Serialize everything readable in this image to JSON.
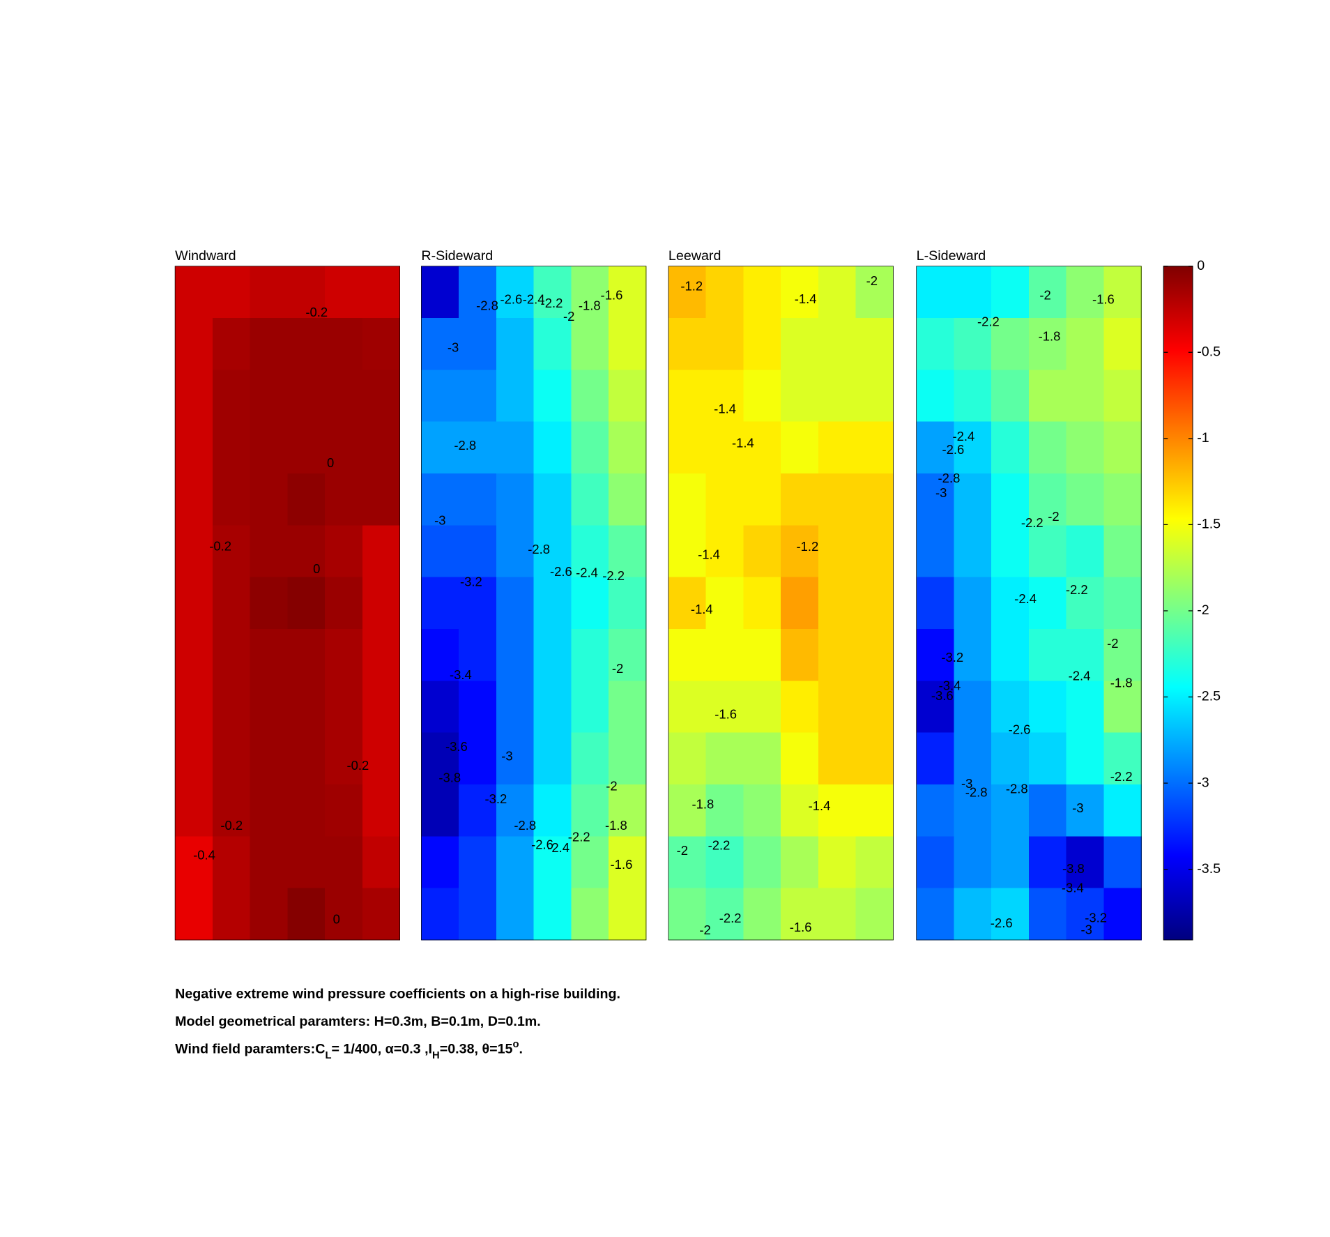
{
  "chart_data": [
    {
      "type": "contour",
      "title": "Windward",
      "z": [
        [
          -0.3,
          -0.3,
          -0.25,
          -0.25,
          -0.3,
          -0.3
        ],
        [
          -0.3,
          -0.15,
          -0.1,
          -0.1,
          -0.1,
          -0.12
        ],
        [
          -0.3,
          -0.12,
          -0.1,
          -0.1,
          -0.1,
          -0.1
        ],
        [
          -0.3,
          -0.12,
          -0.1,
          -0.1,
          -0.1,
          -0.1
        ],
        [
          -0.3,
          -0.12,
          -0.1,
          -0.05,
          -0.1,
          -0.1
        ],
        [
          -0.3,
          -0.15,
          -0.1,
          -0.1,
          -0.15,
          -0.3
        ],
        [
          -0.3,
          -0.15,
          -0.05,
          -0.02,
          -0.1,
          -0.3
        ],
        [
          -0.3,
          -0.15,
          -0.1,
          -0.1,
          -0.15,
          -0.3
        ],
        [
          -0.3,
          -0.15,
          -0.1,
          -0.1,
          -0.15,
          -0.3
        ],
        [
          -0.3,
          -0.15,
          -0.1,
          -0.1,
          -0.15,
          -0.3
        ],
        [
          -0.3,
          -0.15,
          -0.1,
          -0.1,
          -0.12,
          -0.3
        ],
        [
          -0.4,
          -0.2,
          -0.1,
          -0.1,
          -0.1,
          -0.25
        ],
        [
          -0.4,
          -0.2,
          -0.1,
          -0.02,
          -0.1,
          -0.15
        ]
      ],
      "contour_labels": [
        {
          "x": 3.78,
          "y": 0.91,
          "value": -0.2
        },
        {
          "x": 4.15,
          "y": 3.81,
          "value": 0
        },
        {
          "x": 1.21,
          "y": 5.42,
          "value": -0.2
        },
        {
          "x": 3.78,
          "y": 5.86,
          "value": 0
        },
        {
          "x": 4.88,
          "y": 9.65,
          "value": -0.2
        },
        {
          "x": 1.51,
          "y": 10.81,
          "value": -0.2
        },
        {
          "x": 0.78,
          "y": 11.38,
          "value": -0.4
        },
        {
          "x": 4.31,
          "y": 12.62,
          "value": 0
        }
      ]
    },
    {
      "type": "contour",
      "title": "R-Sideward",
      "z": [
        [
          -3.6,
          -3.0,
          -2.6,
          -2.2,
          -1.9,
          -1.6
        ],
        [
          -3.0,
          -3.0,
          -2.7,
          -2.3,
          -1.9,
          -1.6
        ],
        [
          -2.9,
          -2.9,
          -2.7,
          -2.4,
          -2.0,
          -1.7
        ],
        [
          -2.8,
          -2.8,
          -2.8,
          -2.5,
          -2.1,
          -1.8
        ],
        [
          -3.0,
          -3.0,
          -2.9,
          -2.6,
          -2.2,
          -1.9
        ],
        [
          -3.1,
          -3.1,
          -2.9,
          -2.6,
          -2.3,
          -2.1
        ],
        [
          -3.3,
          -3.3,
          -3.0,
          -2.6,
          -2.4,
          -2.2
        ],
        [
          -3.4,
          -3.3,
          -3.0,
          -2.6,
          -2.3,
          -2.1
        ],
        [
          -3.6,
          -3.4,
          -3.0,
          -2.6,
          -2.3,
          -2.0
        ],
        [
          -3.7,
          -3.4,
          -3.0,
          -2.6,
          -2.2,
          -2.0
        ],
        [
          -3.7,
          -3.3,
          -2.9,
          -2.5,
          -2.1,
          -1.8
        ],
        [
          -3.4,
          -3.2,
          -2.8,
          -2.4,
          -2.0,
          -1.6
        ],
        [
          -3.3,
          -3.2,
          -2.8,
          -2.4,
          -1.9,
          -1.6
        ]
      ],
      "contour_labels": [
        {
          "x": 1.76,
          "y": 0.78,
          "value": -2.8
        },
        {
          "x": 2.4,
          "y": 0.66,
          "value": -2.6
        },
        {
          "x": 3.0,
          "y": 0.66,
          "value": -2.4
        },
        {
          "x": 3.48,
          "y": 0.73,
          "value": -2.2
        },
        {
          "x": 3.94,
          "y": 0.99,
          "value": -2
        },
        {
          "x": 4.49,
          "y": 0.78,
          "value": -1.8
        },
        {
          "x": 5.08,
          "y": 0.58,
          "value": -1.6
        },
        {
          "x": 0.85,
          "y": 1.59,
          "value": -3
        },
        {
          "x": 1.17,
          "y": 3.48,
          "value": -2.8
        },
        {
          "x": 0.5,
          "y": 4.92,
          "value": -3
        },
        {
          "x": 3.14,
          "y": 5.48,
          "value": -2.8
        },
        {
          "x": 1.33,
          "y": 6.11,
          "value": -3.2
        },
        {
          "x": 3.73,
          "y": 5.91,
          "value": -2.6
        },
        {
          "x": 4.42,
          "y": 5.93,
          "value": -2.4
        },
        {
          "x": 5.13,
          "y": 5.99,
          "value": -2.2
        },
        {
          "x": 1.05,
          "y": 7.9,
          "value": -3.4
        },
        {
          "x": 5.24,
          "y": 7.78,
          "value": -2
        },
        {
          "x": 0.94,
          "y": 9.29,
          "value": -3.6
        },
        {
          "x": 2.29,
          "y": 9.47,
          "value": -3
        },
        {
          "x": 0.76,
          "y": 9.89,
          "value": -3.8
        },
        {
          "x": 5.08,
          "y": 10.05,
          "value": -2
        },
        {
          "x": 1.99,
          "y": 10.3,
          "value": -3.2
        },
        {
          "x": 2.77,
          "y": 10.81,
          "value": -2.8
        },
        {
          "x": 5.2,
          "y": 10.81,
          "value": -1.8
        },
        {
          "x": 3.23,
          "y": 11.18,
          "value": -2.6
        },
        {
          "x": 3.66,
          "y": 11.24,
          "value": -2.4
        },
        {
          "x": 4.21,
          "y": 11.03,
          "value": -2.2
        },
        {
          "x": 5.34,
          "y": 11.56,
          "value": -1.6
        }
      ]
    },
    {
      "type": "contour",
      "title": "Leeward",
      "z": [
        [
          -1.2,
          -1.3,
          -1.4,
          -1.5,
          -1.6,
          -1.8
        ],
        [
          -1.3,
          -1.3,
          -1.4,
          -1.6,
          -1.6,
          -1.6
        ],
        [
          -1.4,
          -1.4,
          -1.5,
          -1.6,
          -1.6,
          -1.6
        ],
        [
          -1.4,
          -1.4,
          -1.4,
          -1.5,
          -1.4,
          -1.4
        ],
        [
          -1.5,
          -1.4,
          -1.4,
          -1.3,
          -1.3,
          -1.3
        ],
        [
          -1.5,
          -1.4,
          -1.3,
          -1.2,
          -1.3,
          -1.3
        ],
        [
          -1.3,
          -1.5,
          -1.4,
          -1.1,
          -1.3,
          -1.3
        ],
        [
          -1.5,
          -1.5,
          -1.5,
          -1.2,
          -1.3,
          -1.3
        ],
        [
          -1.6,
          -1.6,
          -1.6,
          -1.4,
          -1.3,
          -1.3
        ],
        [
          -1.7,
          -1.8,
          -1.8,
          -1.5,
          -1.3,
          -1.3
        ],
        [
          -1.8,
          -2.0,
          -1.9,
          -1.6,
          -1.5,
          -1.5
        ],
        [
          -2.1,
          -2.2,
          -2.0,
          -1.8,
          -1.6,
          -1.7
        ],
        [
          -2.0,
          -2.1,
          -1.9,
          -1.7,
          -1.7,
          -1.8
        ]
      ],
      "contour_labels": [
        {
          "x": 0.62,
          "y": 0.4,
          "value": -1.2
        },
        {
          "x": 5.43,
          "y": 0.3,
          "value": -2
        },
        {
          "x": 3.66,
          "y": 0.65,
          "value": -1.4
        },
        {
          "x": 1.51,
          "y": 2.77,
          "value": -1.4
        },
        {
          "x": 1.99,
          "y": 3.43,
          "value": -1.4
        },
        {
          "x": 3.71,
          "y": 5.43,
          "value": -1.2
        },
        {
          "x": 1.08,
          "y": 5.58,
          "value": -1.4
        },
        {
          "x": 0.89,
          "y": 6.64,
          "value": -1.4
        },
        {
          "x": 1.53,
          "y": 8.66,
          "value": -1.6
        },
        {
          "x": 0.92,
          "y": 10.4,
          "value": -1.8
        },
        {
          "x": 4.03,
          "y": 10.43,
          "value": -1.4
        },
        {
          "x": 0.37,
          "y": 11.29,
          "value": -2
        },
        {
          "x": 1.35,
          "y": 11.19,
          "value": -2.2
        },
        {
          "x": 1.65,
          "y": 12.6,
          "value": -2.2
        },
        {
          "x": 0.98,
          "y": 12.83,
          "value": -2
        },
        {
          "x": 3.53,
          "y": 12.77,
          "value": -1.6
        }
      ]
    },
    {
      "type": "contour",
      "title": "L-Sideward",
      "z": [
        [
          -2.5,
          -2.5,
          -2.4,
          -2.1,
          -1.9,
          -1.7
        ],
        [
          -2.3,
          -2.2,
          -2.0,
          -1.9,
          -1.8,
          -1.6
        ],
        [
          -2.4,
          -2.3,
          -2.1,
          -1.8,
          -1.8,
          -1.7
        ],
        [
          -2.8,
          -2.6,
          -2.3,
          -2.0,
          -1.9,
          -1.8
        ],
        [
          -3.0,
          -2.7,
          -2.4,
          -2.1,
          -2.0,
          -1.9
        ],
        [
          -3.0,
          -2.7,
          -2.4,
          -2.2,
          -2.3,
          -2.0
        ],
        [
          -3.2,
          -2.8,
          -2.5,
          -2.4,
          -2.2,
          -2.1
        ],
        [
          -3.4,
          -2.8,
          -2.5,
          -2.3,
          -2.3,
          -2.0
        ],
        [
          -3.6,
          -2.9,
          -2.6,
          -2.5,
          -2.4,
          -1.9
        ],
        [
          -3.3,
          -2.9,
          -2.7,
          -2.6,
          -2.4,
          -2.2
        ],
        [
          -3.0,
          -2.9,
          -2.8,
          -3.0,
          -2.8,
          -2.5
        ],
        [
          -3.1,
          -2.9,
          -2.8,
          -3.3,
          -3.6,
          -3.1
        ],
        [
          -3.0,
          -2.7,
          -2.6,
          -3.1,
          -3.2,
          -3.4
        ]
      ],
      "contour_labels": [
        {
          "x": 3.44,
          "y": 0.58,
          "value": -2
        },
        {
          "x": 4.99,
          "y": 0.66,
          "value": -1.6
        },
        {
          "x": 1.92,
          "y": 1.09,
          "value": -2.2
        },
        {
          "x": 3.55,
          "y": 1.37,
          "value": -1.8
        },
        {
          "x": 1.26,
          "y": 3.3,
          "value": -2.4
        },
        {
          "x": 0.98,
          "y": 3.56,
          "value": -2.6
        },
        {
          "x": 0.87,
          "y": 4.11,
          "value": -2.8
        },
        {
          "x": 0.66,
          "y": 4.39,
          "value": -3
        },
        {
          "x": 3.09,
          "y": 4.97,
          "value": -2.2
        },
        {
          "x": 3.66,
          "y": 4.85,
          "value": -2
        },
        {
          "x": 2.91,
          "y": 6.44,
          "value": -2.4
        },
        {
          "x": 4.28,
          "y": 6.26,
          "value": -2.2
        },
        {
          "x": 5.24,
          "y": 7.3,
          "value": -2
        },
        {
          "x": 0.96,
          "y": 7.57,
          "value": -3.2
        },
        {
          "x": 4.35,
          "y": 7.92,
          "value": -2.4
        },
        {
          "x": 0.89,
          "y": 8.11,
          "value": -3.4
        },
        {
          "x": 5.47,
          "y": 8.06,
          "value": -1.8
        },
        {
          "x": 0.69,
          "y": 8.31,
          "value": -3.6
        },
        {
          "x": 2.75,
          "y": 8.96,
          "value": -2.6
        },
        {
          "x": 5.47,
          "y": 9.87,
          "value": -2.2
        },
        {
          "x": 1.35,
          "y": 10.0,
          "value": -3
        },
        {
          "x": 1.6,
          "y": 10.17,
          "value": -2.8
        },
        {
          "x": 2.68,
          "y": 10.1,
          "value": -2.8
        },
        {
          "x": 4.31,
          "y": 10.47,
          "value": -3
        },
        {
          "x": 4.19,
          "y": 11.64,
          "value": -3.8
        },
        {
          "x": 4.17,
          "y": 12.01,
          "value": -3.4
        },
        {
          "x": 4.79,
          "y": 12.59,
          "value": -3.2
        },
        {
          "x": 4.54,
          "y": 12.82,
          "value": -3
        },
        {
          "x": 2.27,
          "y": 12.69,
          "value": -2.6
        }
      ]
    }
  ],
  "colorbar": {
    "colormap": "jet",
    "clim": [
      -3.91,
      0
    ],
    "ticks": [
      0,
      -0.5,
      -1,
      -1.5,
      -2,
      -2.5,
      -3,
      -3.5
    ]
  },
  "caption": [
    "Negative extreme wind pressure coefficients on a high-rise building.",
    "Model geometrical paramters: H=0.3m, B=0.1m, D=0.1m.",
    [
      "Wind field paramters:C",
      "L",
      "= 1/400, α=0.3 ,I",
      "H",
      "=0.38, θ=15",
      "o",
      "."
    ]
  ]
}
